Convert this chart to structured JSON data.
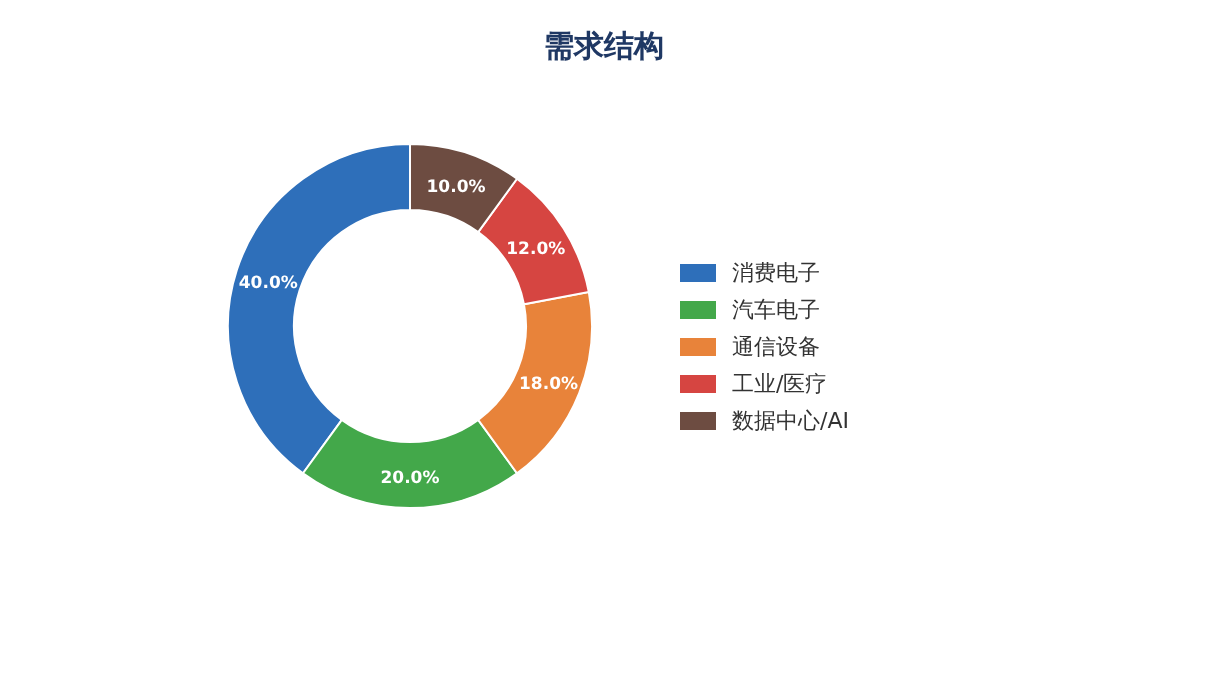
{
  "chart_data": {
    "type": "donut",
    "title": "需求结构",
    "categories": [
      "消费电子",
      "汽车电子",
      "通信设备",
      "工业/医疗",
      "数据中心/AI"
    ],
    "values": [
      40,
      20,
      18,
      12,
      10
    ],
    "colors": [
      "#2e6fba",
      "#43a84a",
      "#e8833a",
      "#d64541",
      "#6d4c41"
    ],
    "value_labels": [
      "40.0%",
      "20.0%",
      "18.0%",
      "12.0%",
      "10.0%"
    ],
    "legend": "right"
  }
}
